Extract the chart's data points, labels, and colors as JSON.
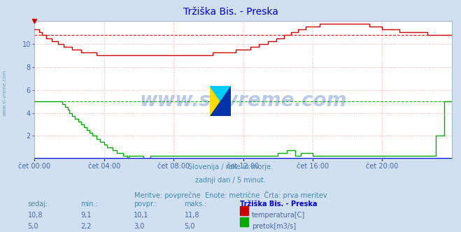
{
  "title": "Tržiška Bis. - Preska",
  "title_color": "#0000cc",
  "bg_color": "#d0e0f0",
  "plot_bg_color": "#ffffff",
  "grid_color": "#ffaaaa",
  "xlabel_color": "#4466aa",
  "temp_color": "#cc0000",
  "flow_color": "#00aa00",
  "avg_temp": 10.8,
  "avg_flow": 5.0,
  "ylim": [
    0,
    12
  ],
  "yticks": [
    2,
    4,
    6,
    8,
    10
  ],
  "xmin": 0,
  "xmax": 288,
  "xtick_positions": [
    0,
    48,
    96,
    144,
    192,
    240
  ],
  "xtick_labels": [
    "čet 00:00",
    "čet 04:00",
    "čet 08:00",
    "čet 12:00",
    "čet 16:00",
    "čet 20:00"
  ],
  "watermark_text": "www.si-vreme.com",
  "watermark_color": "#2255aa",
  "footer_line1": "Slovenija / reke in morje.",
  "footer_line2": "zadnji dan / 5 minut.",
  "footer_line3": "Meritve: povprečne  Enote: metrične  Črta: prva meritev",
  "footer_color": "#4488aa",
  "table_header": [
    "sedaj:",
    "min.:",
    "povpr.:",
    "maks.:",
    "Tržiška Bis. - Preska"
  ],
  "table_temp": [
    "10,8",
    "9,1",
    "10,1",
    "11,8"
  ],
  "table_flow": [
    "5,0",
    "2,2",
    "3,0",
    "5,0"
  ],
  "table_label_temp": "temperatura[C]",
  "table_label_flow": "pretok[m3/s]",
  "side_label": "www.si-vreme.com",
  "side_label_color": "#4488aa"
}
